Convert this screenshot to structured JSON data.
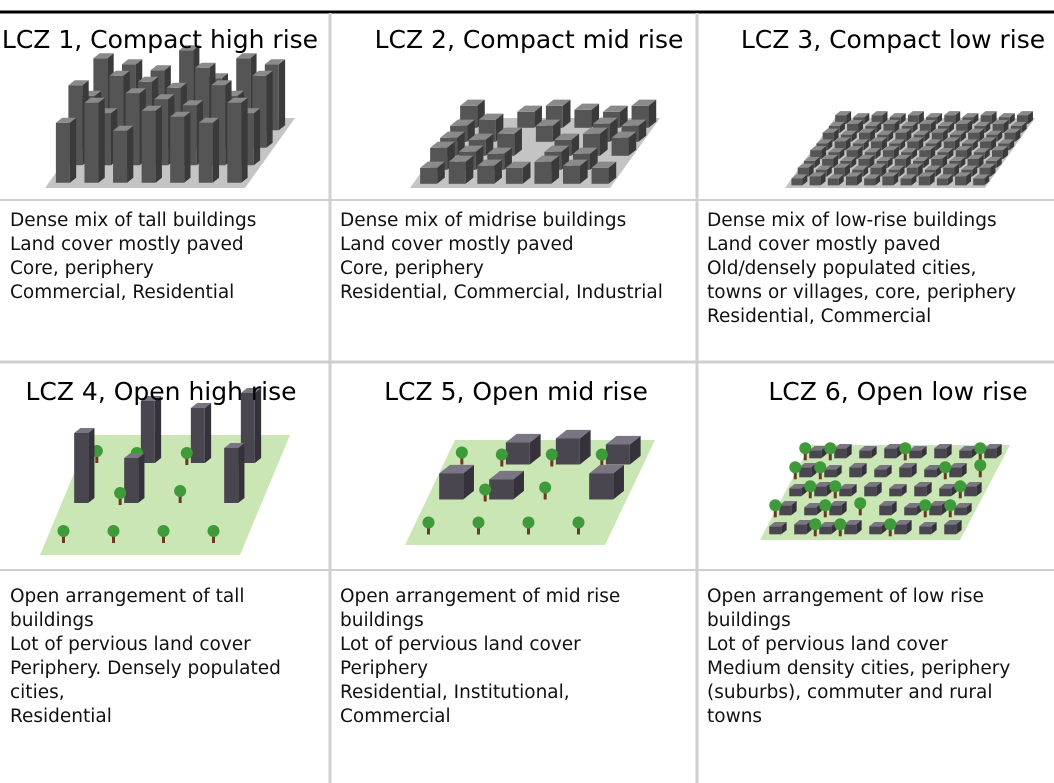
{
  "cells": [
    {
      "title": "LCZ 1, Compact high rise",
      "lines": [
        "Dense mix of tall buildings",
        "Land cover mostly paved",
        "Core, periphery",
        "Commercial, Residential"
      ]
    },
    {
      "title": "LCZ 2, Compact mid rise",
      "lines": [
        "Dense mix of midrise buildings",
        "Land cover mostly paved",
        "Core, periphery",
        "Residential, Commercial, Industrial"
      ]
    },
    {
      "title": "LCZ 3, Compact low rise",
      "lines": [
        "Dense mix of low-rise buildings",
        "Land cover mostly paved",
        "Old/densely populated cities,",
        "towns or villages, core, periphery",
        "Residential, Commercial"
      ]
    },
    {
      "title": "LCZ 4, Open high rise",
      "lines": [
        "Open arrangement of tall",
        "buildings",
        "Lot of pervious land cover",
        "Periphery. Densely populated",
        "cities,",
        "Residential"
      ]
    },
    {
      "title": "LCZ 5, Open mid rise",
      "lines": [
        "Open arrangement of mid rise",
        "buildings",
        "Lot of pervious land cover",
        "Periphery",
        "Residential, Institutional,",
        "Commercial"
      ]
    },
    {
      "title": "LCZ 6, Open low rise",
      "lines": [
        "Open arrangement of low rise",
        "buildings",
        "Lot of pervious land cover",
        "Medium density cities, periphery",
        "(suburbs), commuter and rural",
        "towns"
      ]
    }
  ]
}
